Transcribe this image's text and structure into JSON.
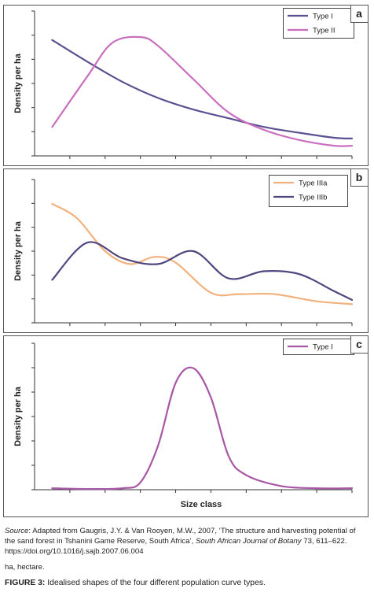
{
  "chart_data": [
    {
      "type": "line",
      "panel_label": "a",
      "ylabel": "Density per ha",
      "xlabel": "",
      "x_range": [
        0,
        9
      ],
      "ylim": [
        0,
        10
      ],
      "legend_position": "top-right",
      "series": [
        {
          "name": "Type I",
          "color": "#5b5191",
          "x": [
            0.5,
            1.5,
            2.5,
            3.5,
            4.5,
            5.5,
            6.5,
            7.5,
            8.5,
            9.0
          ],
          "y": [
            8.0,
            6.5,
            5.1,
            4.0,
            3.2,
            2.6,
            2.0,
            1.6,
            1.25,
            1.2
          ]
        },
        {
          "name": "Type II",
          "color": "#c96fbe",
          "x": [
            0.5,
            1.5,
            2.2,
            3.0,
            3.5,
            4.5,
            5.5,
            6.5,
            7.5,
            8.5,
            9.0
          ],
          "y": [
            2.0,
            5.5,
            7.8,
            8.2,
            7.6,
            5.3,
            3.0,
            1.8,
            1.1,
            0.7,
            0.7
          ]
        }
      ]
    },
    {
      "type": "line",
      "panel_label": "b",
      "ylabel": "Density per ha",
      "xlabel": "",
      "x_range": [
        0,
        9
      ],
      "ylim": [
        0,
        10
      ],
      "legend_position": "top-right",
      "series": [
        {
          "name": "Type IIIa",
          "color": "#f2b27e",
          "x": [
            0.5,
            1.2,
            2.0,
            2.7,
            3.4,
            4.0,
            5.0,
            5.8,
            6.8,
            8.0,
            9.0
          ],
          "y": [
            8.3,
            7.3,
            5.0,
            4.1,
            4.6,
            4.2,
            2.1,
            2.0,
            2.0,
            1.5,
            1.3
          ]
        },
        {
          "name": "Type IIIb",
          "color": "#4f467f",
          "x": [
            0.5,
            1.5,
            2.5,
            3.5,
            4.5,
            5.5,
            6.5,
            7.5,
            8.5,
            9.0
          ],
          "y": [
            3.0,
            5.6,
            4.5,
            4.1,
            5.0,
            3.1,
            3.6,
            3.4,
            2.2,
            1.6
          ]
        }
      ]
    },
    {
      "type": "line",
      "panel_label": "c",
      "ylabel": "Density per ha",
      "xlabel": "Size class",
      "x_range": [
        0,
        9
      ],
      "ylim": [
        0,
        10
      ],
      "legend_position": "top-right",
      "series": [
        {
          "name": "Type I",
          "color": "#a757a6",
          "x": [
            0.5,
            1.5,
            2.5,
            3.0,
            3.5,
            4.0,
            4.5,
            5.0,
            5.5,
            6.0,
            7.0,
            8.0,
            9.0
          ],
          "y": [
            0.1,
            0.05,
            0.1,
            0.5,
            3.0,
            7.3,
            8.3,
            6.3,
            2.3,
            1.0,
            0.25,
            0.1,
            0.1
          ]
        }
      ]
    }
  ],
  "captions": {
    "source_label": "Source",
    "source_text_1": ": Adapted from Gaugris, J.Y. & Van Rooyen, M.W., 2007, ‘The structure and harvesting potential of the sand forest in Tshanini Game Reserve, South Africa’, ",
    "source_journal": "South African Journal of Botany",
    "source_text_2": " 73, 611–622. https://doi.org/10.1016/j.sajb.2007.06.004",
    "abbreviation": "ha, hectare.",
    "figure_label": "FIGURE 3:",
    "figure_text": " Idealised shapes of the four different population curve types."
  }
}
